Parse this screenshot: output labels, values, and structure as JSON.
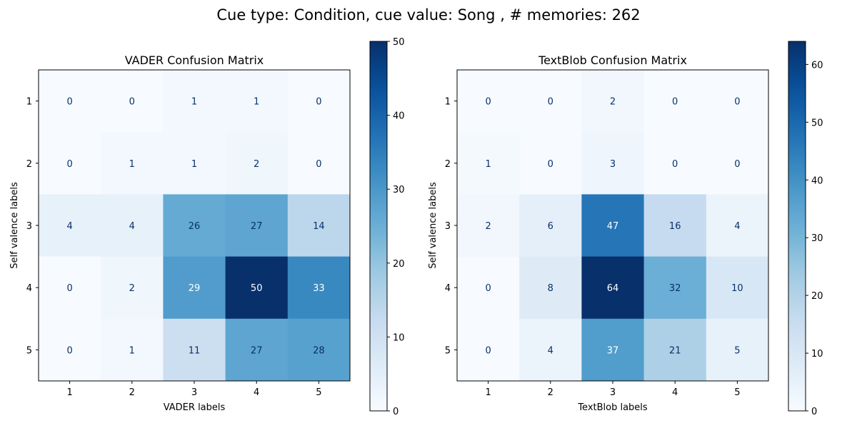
{
  "figure": {
    "suptitle": "Cue type: Condition, cue value: Song , # memories: 262"
  },
  "chart_data": [
    {
      "type": "heatmap",
      "title": "VADER Confusion Matrix",
      "xlabel": "VADER labels",
      "ylabel": "Self valence labels",
      "x_categories": [
        "1",
        "2",
        "3",
        "4",
        "5"
      ],
      "y_categories": [
        "1",
        "2",
        "3",
        "4",
        "5"
      ],
      "values": [
        [
          0,
          0,
          1,
          1,
          0
        ],
        [
          0,
          1,
          1,
          2,
          0
        ],
        [
          4,
          4,
          26,
          27,
          14
        ],
        [
          0,
          2,
          29,
          50,
          33
        ],
        [
          0,
          1,
          11,
          27,
          28
        ]
      ],
      "colormap": "Blues",
      "colorbar": {
        "min": 0,
        "max": 50,
        "ticks": [
          0,
          10,
          20,
          30,
          40,
          50
        ]
      }
    },
    {
      "type": "heatmap",
      "title": "TextBlob Confusion Matrix",
      "xlabel": "TextBlob labels",
      "ylabel": "Self valence labels",
      "x_categories": [
        "1",
        "2",
        "3",
        "4",
        "5"
      ],
      "y_categories": [
        "1",
        "2",
        "3",
        "4",
        "5"
      ],
      "values": [
        [
          0,
          0,
          2,
          0,
          0
        ],
        [
          1,
          0,
          3,
          0,
          0
        ],
        [
          2,
          6,
          47,
          16,
          4
        ],
        [
          0,
          8,
          64,
          32,
          10
        ],
        [
          0,
          4,
          37,
          21,
          5
        ]
      ],
      "colormap": "Blues",
      "colorbar": {
        "min": 0,
        "max": 64,
        "ticks": [
          0,
          10,
          20,
          30,
          40,
          50,
          60
        ]
      }
    }
  ]
}
